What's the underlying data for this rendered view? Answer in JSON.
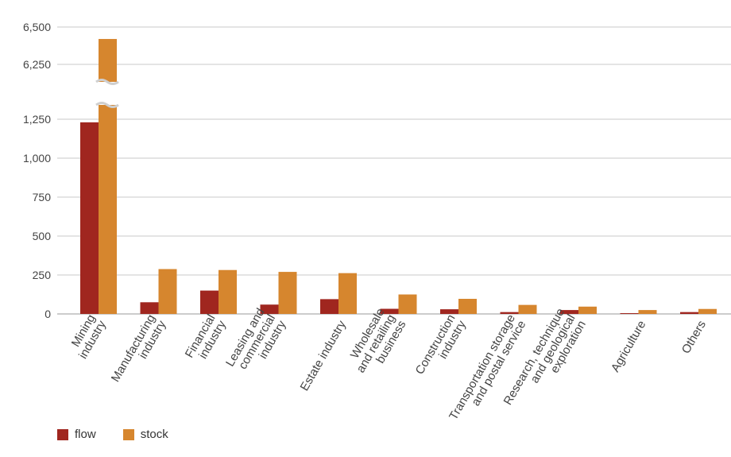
{
  "chart_data": {
    "type": "bar",
    "categories": [
      [
        "Mining",
        "industry"
      ],
      [
        "Manufacturing",
        "industry"
      ],
      [
        "Financial",
        "industry"
      ],
      [
        "Leasing and",
        "commercial",
        "industry"
      ],
      [
        "Estate industry"
      ],
      [
        "Wholesale",
        "and retailing",
        "business"
      ],
      [
        "Construction",
        "industry"
      ],
      [
        "Transportation storage",
        "and postal service"
      ],
      [
        "Research, technique",
        "and geological",
        "exploration"
      ],
      [
        "Agriculture"
      ],
      [
        "Others"
      ]
    ],
    "series": [
      {
        "name": "flow",
        "color": "#a0261f",
        "values": [
          1230,
          75,
          150,
          60,
          95,
          33,
          30,
          12,
          25,
          5,
          12
        ]
      },
      {
        "name": "stock",
        "color": "#d6862e",
        "values": [
          6420,
          288,
          282,
          270,
          262,
          125,
          97,
          58,
          47,
          25,
          32
        ]
      }
    ],
    "y_ticks_lower": [
      "0",
      "250",
      "500",
      "750",
      "1,000",
      "1,250"
    ],
    "y_ticks_upper": [
      "6,250",
      "6,500"
    ],
    "ylim_lower": [
      0,
      1300
    ],
    "ylim_upper": [
      6175,
      6500
    ],
    "axis_break": true,
    "grid": true,
    "legend_position": "bottom-left"
  },
  "legend": {
    "flow_label": "flow",
    "stock_label": "stock",
    "flow_color": "#a0261f",
    "stock_color": "#d6862e"
  }
}
